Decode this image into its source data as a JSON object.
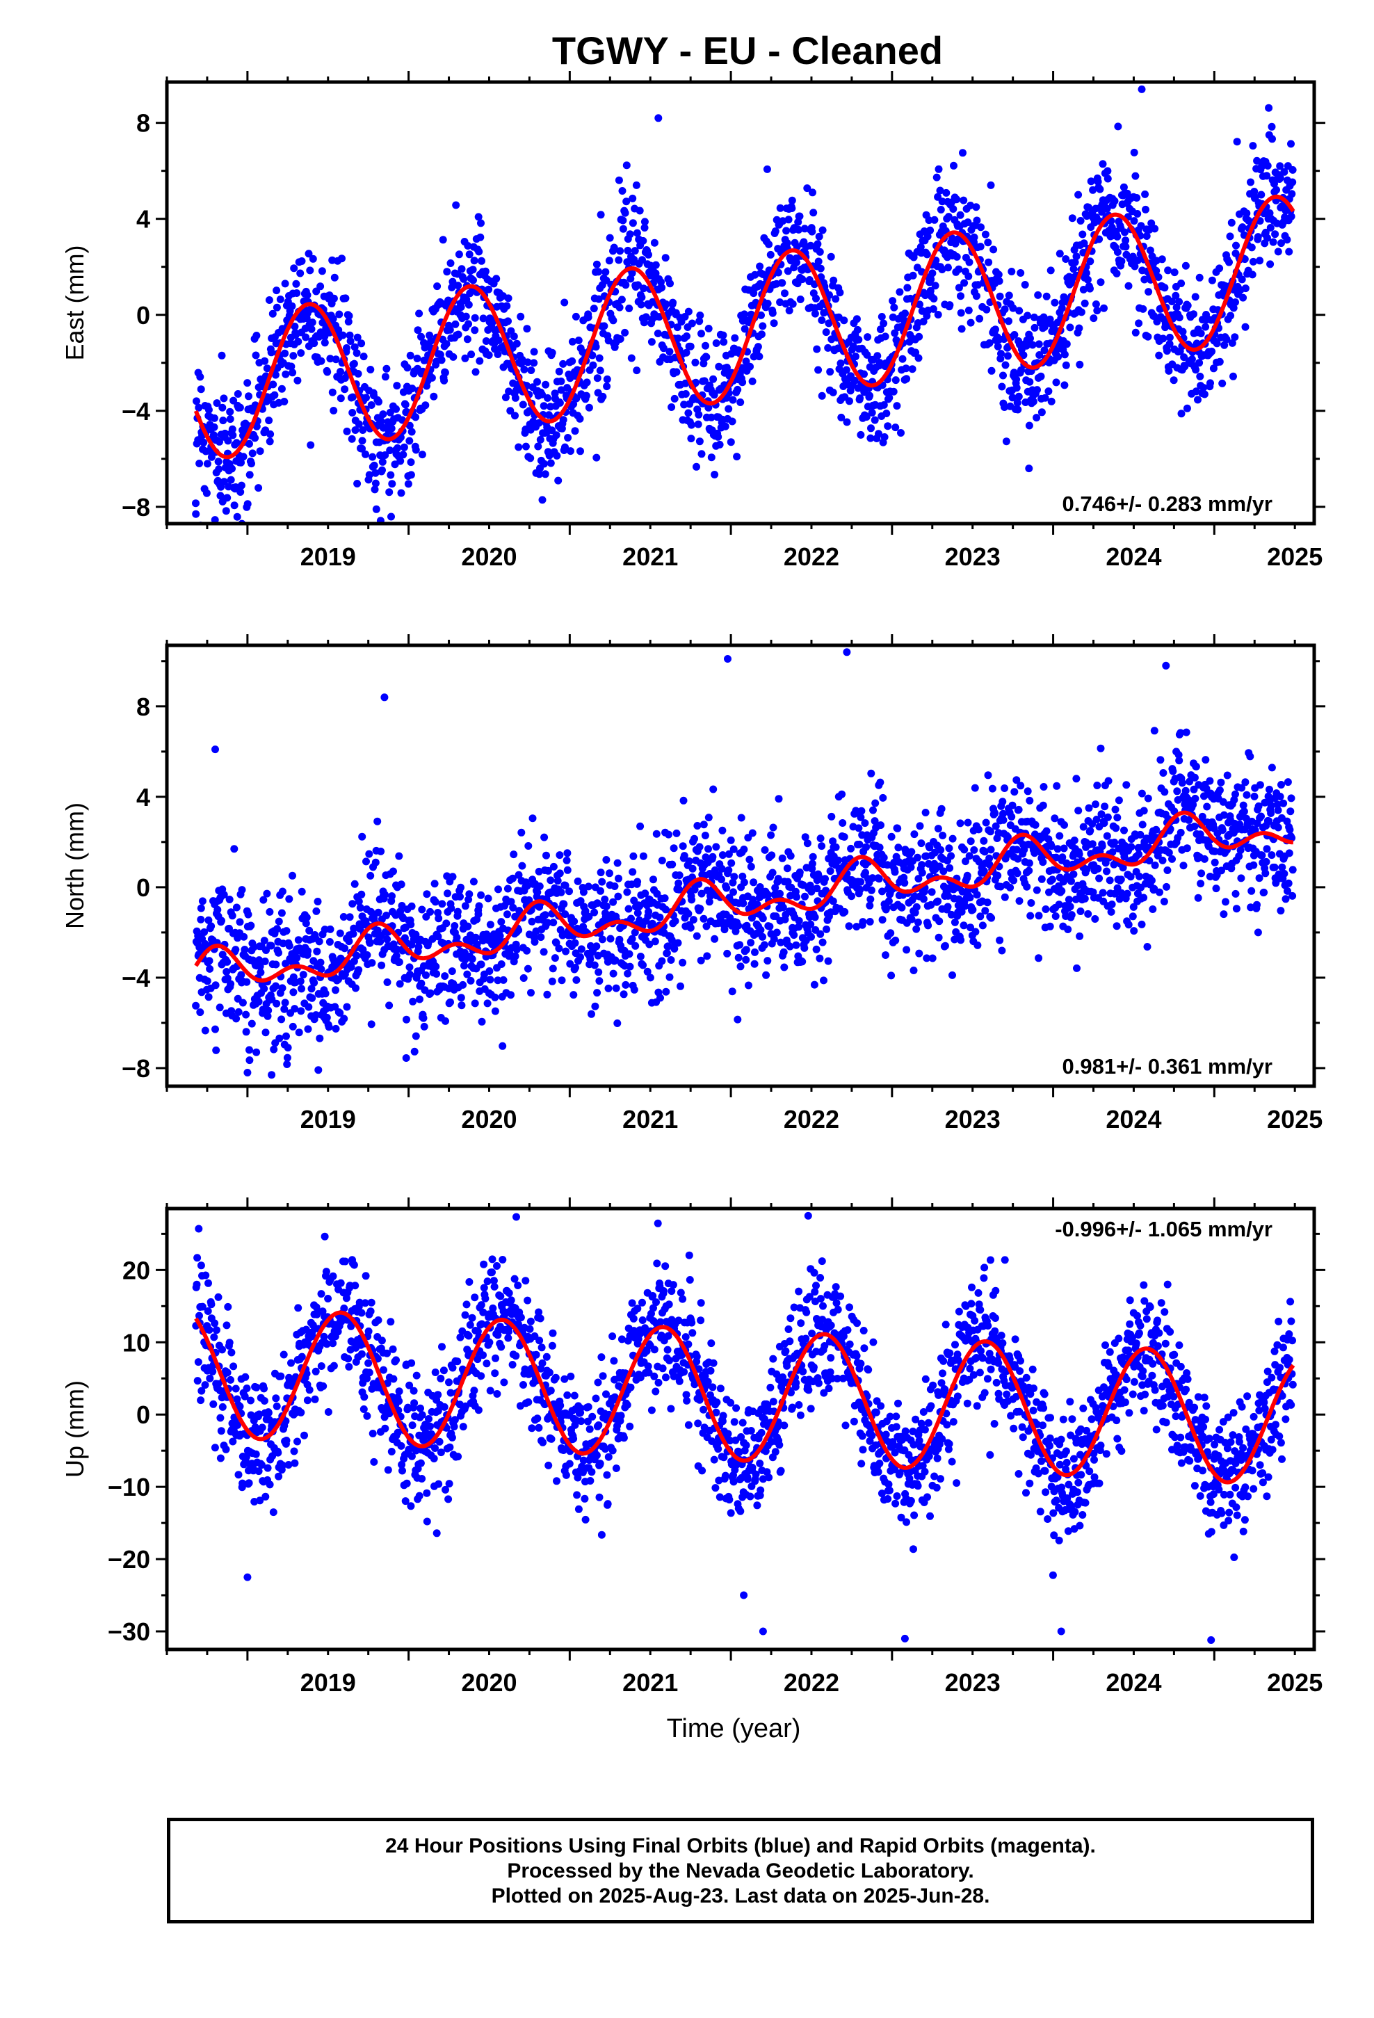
{
  "title": "TGWY  - EU - Cleaned",
  "x_axis_title": "Time (year)",
  "footer": {
    "line1": "24 Hour Positions Using Final Orbits (blue) and Rapid Orbits (magenta).",
    "line2": "Processed by the Nevada Geodetic Laboratory.",
    "line3": "Plotted on 2025-Aug-23. Last data on 2025-Jun-28."
  },
  "colors": {
    "final_orbits": "#0000ff",
    "rapid_orbits": "#ff00ff",
    "fit": "#ff0000"
  },
  "chart_data": [
    {
      "type": "scatter",
      "ylabel": "East (mm)",
      "rate_label": "0.746+/- 0.283 mm/yr",
      "xlim": [
        2018.5,
        2025.62
      ],
      "ylim": [
        -8.7,
        9.7
      ],
      "x_ticks": [
        2019,
        2020,
        2021,
        2022,
        2023,
        2024,
        2025
      ],
      "y_ticks": [
        -8,
        -4,
        0,
        4,
        8
      ],
      "data_range": [
        2018.68,
        2025.49
      ],
      "fit": {
        "rate": 0.746,
        "offset": -0.6,
        "annual_amp": 3.0,
        "annual_peak": 0.38,
        "semiannual_amp": 0.0,
        "semiannual_peak": 0.0,
        "scatter": 1.4
      },
      "outliers": [
        [
          2018.68,
          -8.3
        ],
        [
          2019.8,
          -8.1
        ],
        [
          2021.55,
          8.2
        ],
        [
          2024.55,
          9.4
        ],
        [
          2023.85,
          -6.4
        ]
      ]
    },
    {
      "type": "scatter",
      "ylabel": "North (mm)",
      "rate_label": "0.981+/- 0.361 mm/yr",
      "xlim": [
        2018.5,
        2025.62
      ],
      "ylim": [
        -8.8,
        10.7
      ],
      "x_ticks": [
        2019,
        2020,
        2021,
        2022,
        2023,
        2024,
        2025
      ],
      "y_ticks": [
        -8,
        -4,
        0,
        4,
        8
      ],
      "data_range": [
        2018.68,
        2025.49
      ],
      "fit": {
        "rate": 0.981,
        "offset": -0.7,
        "annual_amp": 0.7,
        "annual_peak": 0.82,
        "semiannual_amp": 0.55,
        "semiannual_peak": 0.3,
        "scatter": 1.6
      },
      "outliers": [
        [
          2018.8,
          6.1
        ],
        [
          2019.85,
          8.4
        ],
        [
          2021.98,
          10.1
        ],
        [
          2022.72,
          10.4
        ],
        [
          2019.0,
          -8.2
        ],
        [
          2019.15,
          -8.3
        ],
        [
          2024.7,
          9.8
        ]
      ]
    },
    {
      "type": "scatter",
      "ylabel": "Up (mm)",
      "rate_label": "-0.996+/- 1.065 mm/yr",
      "xlim": [
        2018.5,
        2025.62
      ],
      "ylim": [
        -32.5,
        28.5
      ],
      "x_ticks": [
        2019,
        2020,
        2021,
        2022,
        2023,
        2024,
        2025
      ],
      "y_ticks": [
        -30,
        -20,
        -10,
        0,
        10,
        20
      ],
      "data_range": [
        2018.68,
        2025.49
      ],
      "fit": {
        "rate": -0.996,
        "offset": 2.7,
        "annual_amp": 9.0,
        "annual_peak": 0.58,
        "semiannual_amp": 0.0,
        "semiannual_peak": 0.0,
        "scatter": 4.6
      },
      "outliers": [
        [
          2019.0,
          -22.5
        ],
        [
          2022.08,
          -25.0
        ],
        [
          2022.2,
          -30.0
        ],
        [
          2023.08,
          -31.0
        ],
        [
          2024.05,
          -30.0
        ],
        [
          2024.98,
          -31.2
        ],
        [
          2022.48,
          27.5
        ]
      ]
    }
  ]
}
